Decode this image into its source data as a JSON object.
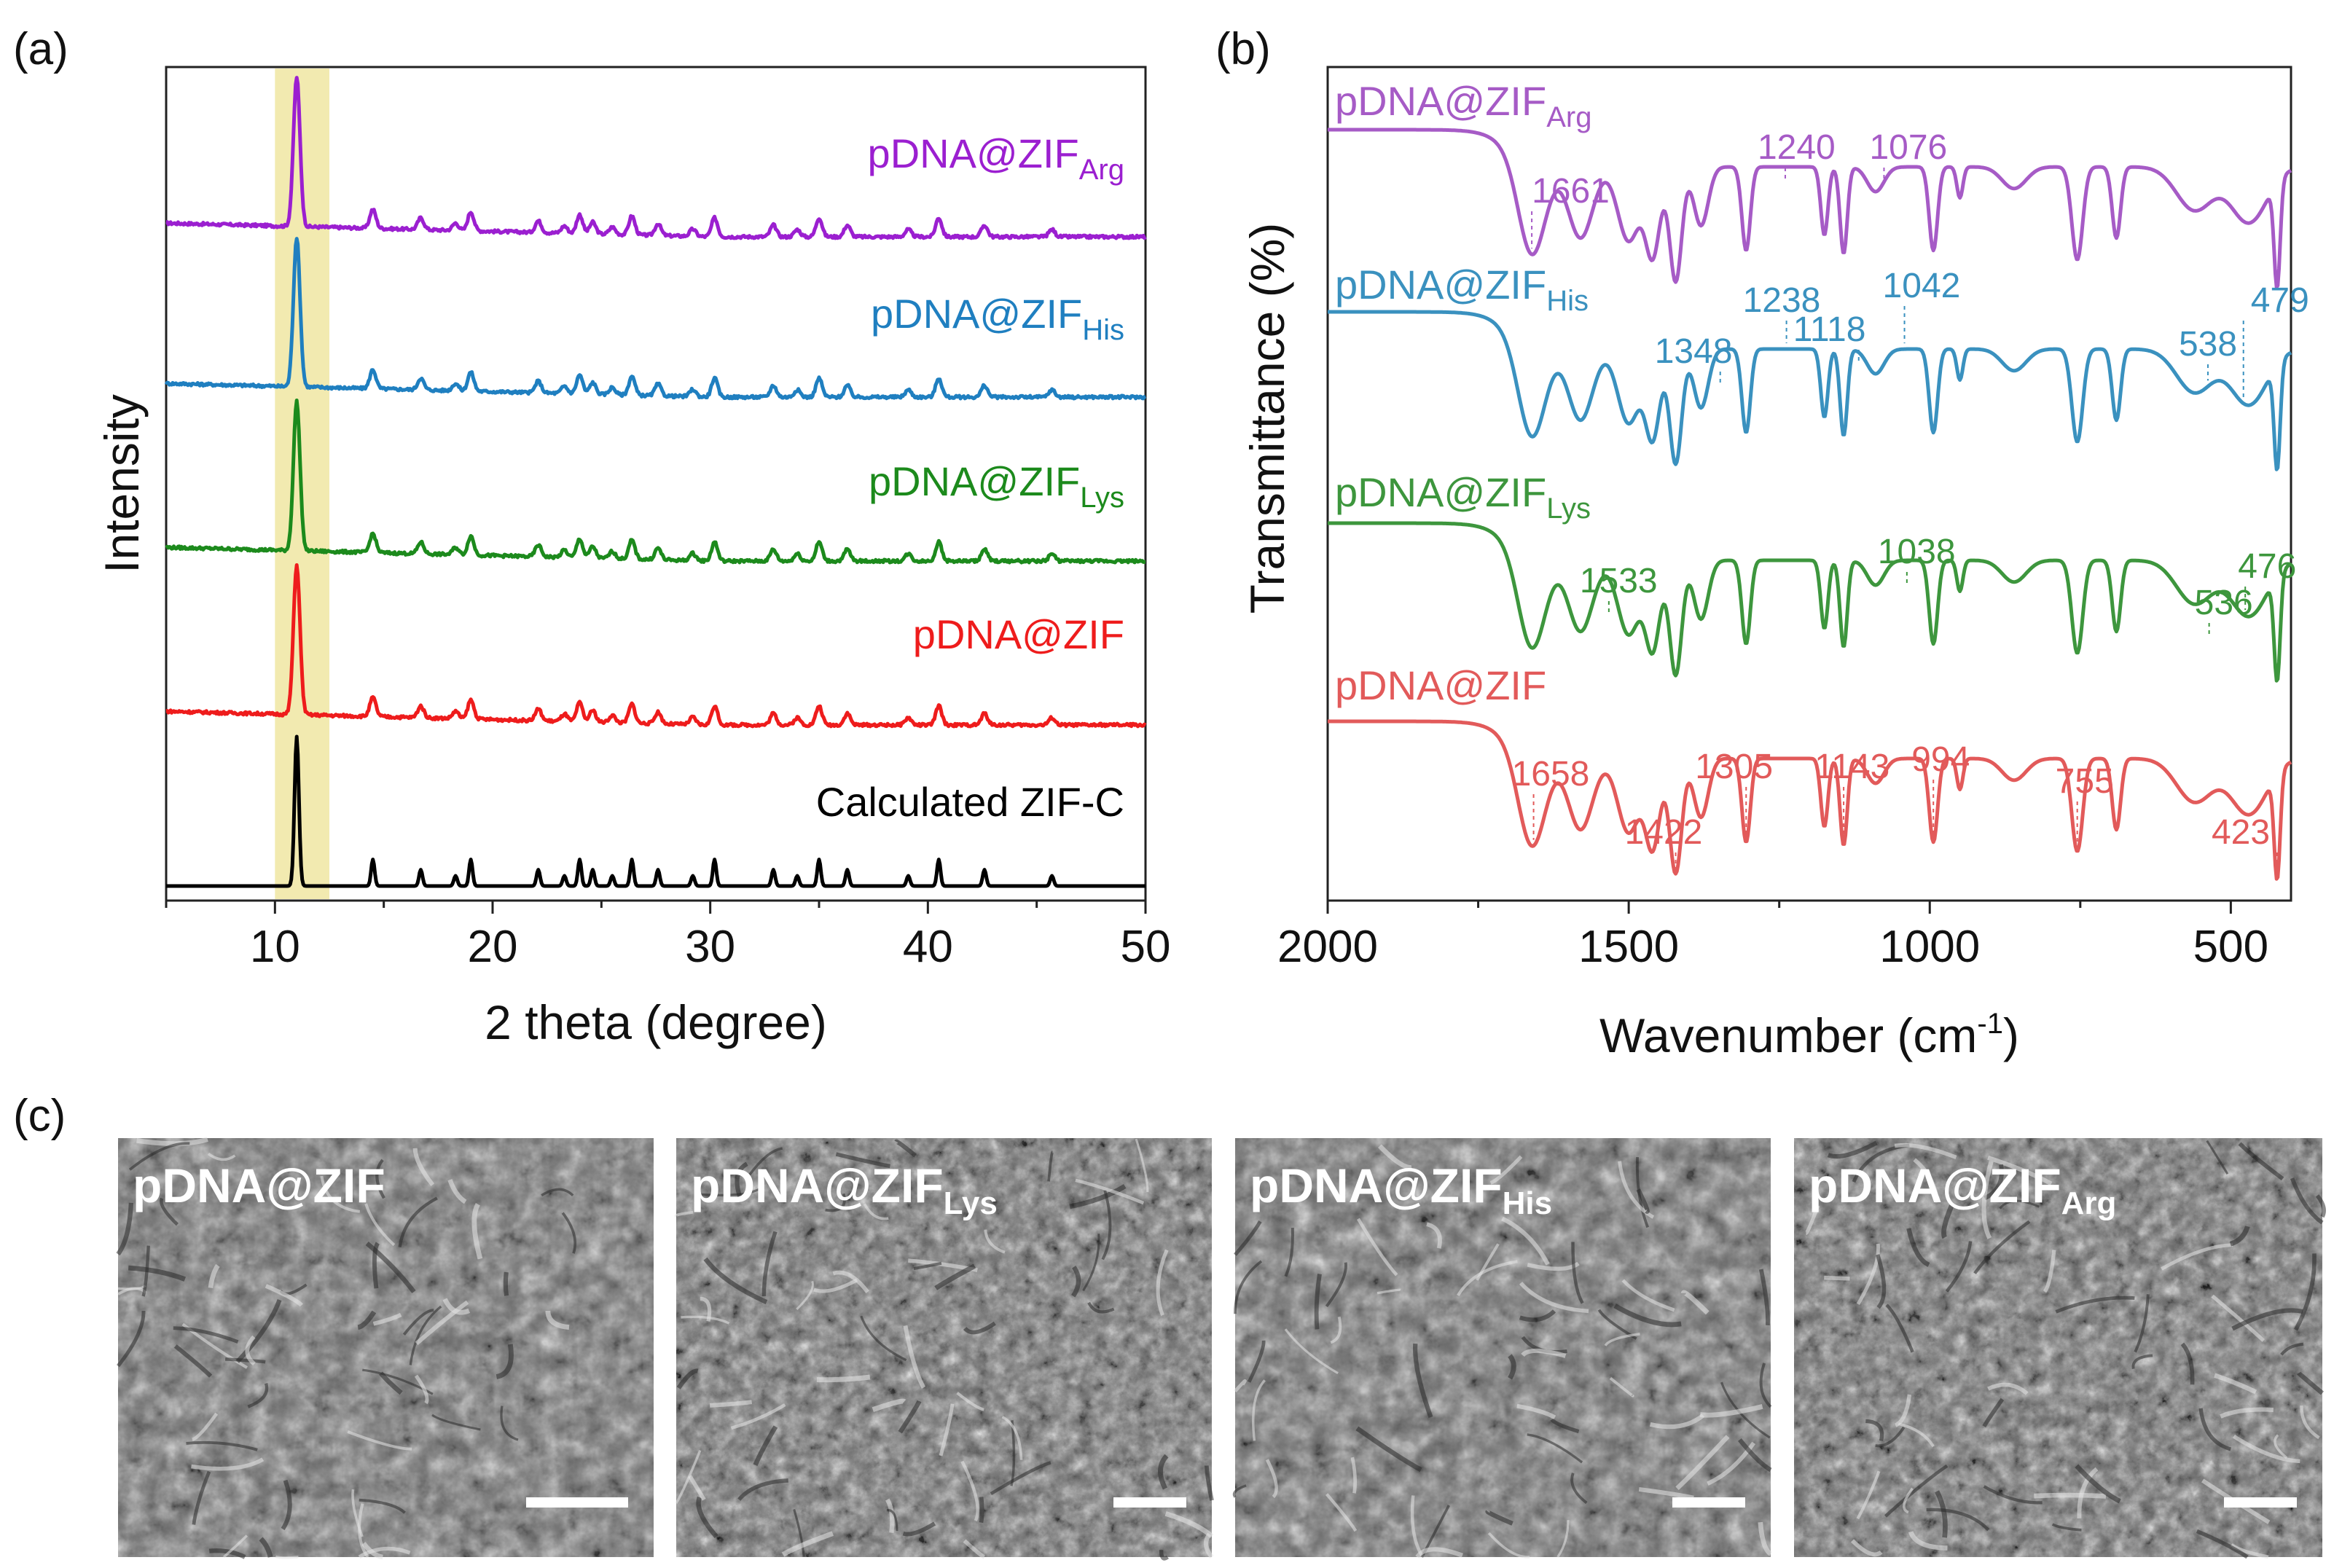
{
  "panel_letters": {
    "a": "(a)",
    "b": "(b)",
    "c": "(c)"
  },
  "colors": {
    "arg": "#9b1fd0",
    "his": "#1f7fc0",
    "lys": "#1c8a1c",
    "zif": "#ee1c1c",
    "calc": "#000000",
    "ftir_arg": "#a65bc6",
    "ftir_his": "#3a91bf",
    "ftir_lys": "#3d963d",
    "ftir_zif": "#e25a5a",
    "highlight": "#f2eab0"
  },
  "chart_data": [
    {
      "type": "line",
      "title": "",
      "xlabel": "2 theta (degree)",
      "ylabel": "Intensity",
      "xlim": [
        5,
        50
      ],
      "xticks": [
        "10",
        "20",
        "30",
        "40",
        "50"
      ],
      "highlight_band": [
        10,
        12.5
      ],
      "stacked": true,
      "series": [
        {
          "key": "arg",
          "name_main": "pDNA@ZIF",
          "name_sub": "Arg",
          "offset": 4,
          "main_peak": 11.0
        },
        {
          "key": "his",
          "name_main": "pDNA@ZIF",
          "name_sub": "His",
          "offset": 3,
          "main_peak": 11.0
        },
        {
          "key": "lys",
          "name_main": "pDNA@ZIF",
          "name_sub": "Lys",
          "offset": 2,
          "main_peak": 11.0
        },
        {
          "key": "zif",
          "name_main": "pDNA@ZIF",
          "name_sub": "",
          "offset": 1,
          "main_peak": 11.0
        },
        {
          "key": "calc",
          "name_main": "Calculated ZIF-C",
          "name_sub": "",
          "offset": 0,
          "main_peak": 11.0
        }
      ],
      "minor_peaks": [
        14.5,
        16.7,
        18.3,
        19.0,
        22.1,
        23.3,
        24.0,
        24.6,
        25.5,
        26.4,
        27.6,
        29.2,
        30.2,
        32.9,
        34.0,
        35.0,
        36.3,
        39.1,
        40.5,
        42.6,
        45.7
      ]
    },
    {
      "type": "line",
      "title": "",
      "xlabel_main": "Wavenumber (cm",
      "xlabel_sup": "-1",
      "xlabel_end": ")",
      "ylabel": "Transmittance (%)",
      "xlim": [
        2000,
        400
      ],
      "xticks": [
        "2000",
        "1500",
        "1000",
        "500"
      ],
      "stacked": true,
      "series": [
        {
          "key": "arg",
          "name_main": "pDNA@ZIF",
          "name_sub": "Arg",
          "peaks": [
            {
              "wn": 1661,
              "label": "1661"
            },
            {
              "wn": 1240,
              "label": "1240"
            },
            {
              "wn": 1076,
              "label": "1076"
            }
          ]
        },
        {
          "key": "his",
          "name_main": "pDNA@ZIF",
          "name_sub": "His",
          "peaks": [
            {
              "wn": 1348,
              "label": "1348"
            },
            {
              "wn": 1238,
              "label": "1238"
            },
            {
              "wn": 1118,
              "label": "1118"
            },
            {
              "wn": 1042,
              "label": "1042"
            },
            {
              "wn": 538,
              "label": "538"
            },
            {
              "wn": 479,
              "label": "479"
            }
          ]
        },
        {
          "key": "lys",
          "name_main": "pDNA@ZIF",
          "name_sub": "Lys",
          "peaks": [
            {
              "wn": 1533,
              "label": "1533"
            },
            {
              "wn": 1038,
              "label": "1038"
            },
            {
              "wn": 536,
              "label": "536"
            },
            {
              "wn": 476,
              "label": "476"
            }
          ]
        },
        {
          "key": "zif",
          "name_main": "pDNA@ZIF",
          "name_sub": "",
          "peaks": [
            {
              "wn": 1658,
              "label": "1658"
            },
            {
              "wn": 1422,
              "label": "1422"
            },
            {
              "wn": 1305,
              "label": "1305"
            },
            {
              "wn": 1143,
              "label": "1143"
            },
            {
              "wn": 994,
              "label": "994"
            },
            {
              "wn": 755,
              "label": "755"
            },
            {
              "wn": 423,
              "label": "423"
            }
          ]
        }
      ],
      "absorption_bands": [
        1661,
        1580,
        1500,
        1460,
        1422,
        1380,
        1305,
        1175,
        1143,
        994,
        950,
        755,
        690,
        423
      ]
    }
  ],
  "sem_images": [
    {
      "label_main": "pDNA@ZIF",
      "label_sub": ""
    },
    {
      "label_main": "pDNA@ZIF",
      "label_sub": "Lys"
    },
    {
      "label_main": "pDNA@ZIF",
      "label_sub": "His"
    },
    {
      "label_main": "pDNA@ZIF",
      "label_sub": "Arg"
    }
  ]
}
